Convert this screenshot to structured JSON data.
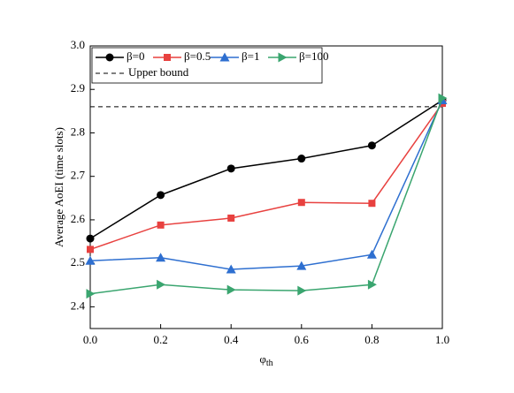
{
  "chart_data": {
    "type": "line",
    "x_label": {
      "base": "φ",
      "sub": "th"
    },
    "y_label": "Average AoEI (time slots)",
    "x": [
      0,
      0.2,
      0.4,
      0.6,
      0.8,
      1
    ],
    "series": [
      {
        "name": "β=0",
        "color": "#000000",
        "marker": "circle",
        "values": [
          2.557,
          2.657,
          2.718,
          2.741,
          2.771,
          2.875
        ]
      },
      {
        "name": "β=0.5",
        "color": "#e8413f",
        "marker": "square",
        "values": [
          2.532,
          2.588,
          2.604,
          2.64,
          2.638,
          2.868
        ]
      },
      {
        "name": "β=1",
        "color": "#2e6fd0",
        "marker": "triangle-up",
        "values": [
          2.506,
          2.513,
          2.486,
          2.494,
          2.52,
          2.875
        ]
      },
      {
        "name": "β=100",
        "color": "#3aa56f",
        "marker": "triangle-right",
        "values": [
          2.43,
          2.451,
          2.439,
          2.437,
          2.451,
          2.88
        ]
      }
    ],
    "reference_lines": [
      {
        "name": "Upper bound",
        "value": 2.86,
        "color": "#000000",
        "dashed": true
      }
    ],
    "xlim": [
      0,
      1
    ],
    "xticks": [
      {
        "value": 0,
        "label": "0.0"
      },
      0.2,
      0.4,
      0.6,
      0.8,
      {
        "value": 1,
        "label": "1.0"
      }
    ],
    "ylim": [
      2.35,
      3.0
    ],
    "yticks": [
      2.4,
      2.5,
      2.6,
      2.7,
      2.8,
      2.9,
      {
        "value": 3,
        "label": "3.0"
      }
    ],
    "legend": "upper left"
  }
}
